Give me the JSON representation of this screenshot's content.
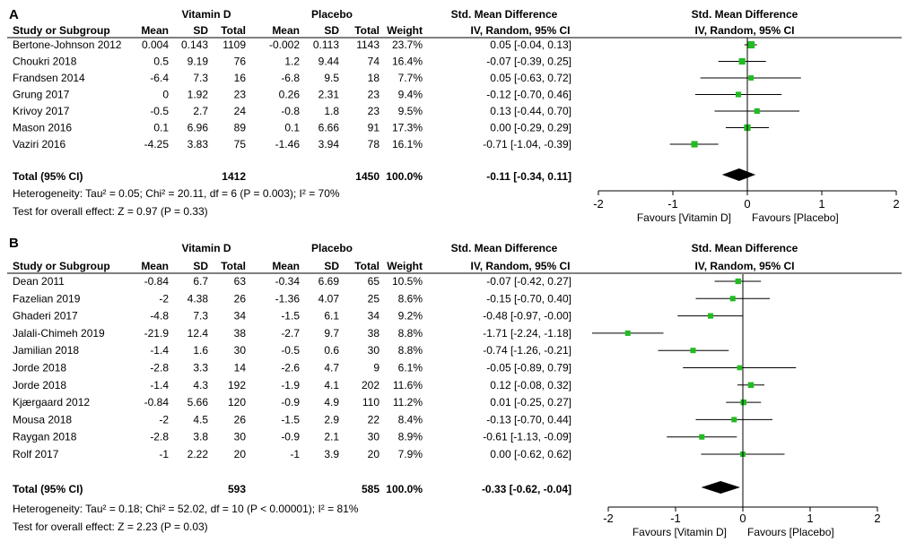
{
  "colors": {
    "marker": "#22bb22",
    "diamond": "#000000",
    "line": "#000000"
  },
  "chart_data": [
    {
      "type": "forest",
      "panel_label": "A",
      "headers": {
        "group1": "Vitamin D",
        "group2": "Placebo",
        "effect": "Std. Mean Difference",
        "study": "Study or Subgroup",
        "mean": "Mean",
        "sd": "SD",
        "total": "Total",
        "weight": "Weight",
        "method": "IV, Random, 95% CI"
      },
      "plot_title": "Std. Mean Difference",
      "plot_subtitle": "IV, Random, 95% CI",
      "studies": [
        {
          "name": "Bertone-Johnson 2012",
          "m1": "0.004",
          "sd1": "0.143",
          "n1": "1109",
          "m2": "-0.002",
          "sd2": "0.113",
          "n2": "1143",
          "weight": "23.7%",
          "ci_text": "0.05 [-0.04, 0.13]",
          "est": 0.05,
          "lo": -0.04,
          "hi": 0.13,
          "w": 23.7
        },
        {
          "name": "Choukri 2018",
          "m1": "0.5",
          "sd1": "9.19",
          "n1": "76",
          "m2": "1.2",
          "sd2": "9.44",
          "n2": "74",
          "weight": "16.4%",
          "ci_text": "-0.07 [-0.39, 0.25]",
          "est": -0.07,
          "lo": -0.39,
          "hi": 0.25,
          "w": 16.4
        },
        {
          "name": "Frandsen 2014",
          "m1": "-6.4",
          "sd1": "7.3",
          "n1": "16",
          "m2": "-6.8",
          "sd2": "9.5",
          "n2": "18",
          "weight": "7.7%",
          "ci_text": "0.05 [-0.63, 0.72]",
          "est": 0.05,
          "lo": -0.63,
          "hi": 0.72,
          "w": 7.7
        },
        {
          "name": "Grung 2017",
          "m1": "0",
          "sd1": "1.92",
          "n1": "23",
          "m2": "0.26",
          "sd2": "2.31",
          "n2": "23",
          "weight": "9.4%",
          "ci_text": "-0.12 [-0.70, 0.46]",
          "est": -0.12,
          "lo": -0.7,
          "hi": 0.46,
          "w": 9.4
        },
        {
          "name": "Krivoy 2017",
          "m1": "-0.5",
          "sd1": "2.7",
          "n1": "24",
          "m2": "-0.8",
          "sd2": "1.8",
          "n2": "23",
          "weight": "9.5%",
          "ci_text": "0.13 [-0.44, 0.70]",
          "est": 0.13,
          "lo": -0.44,
          "hi": 0.7,
          "w": 9.5
        },
        {
          "name": "Mason 2016",
          "m1": "0.1",
          "sd1": "6.96",
          "n1": "89",
          "m2": "0.1",
          "sd2": "6.66",
          "n2": "91",
          "weight": "17.3%",
          "ci_text": "0.00 [-0.29, 0.29]",
          "est": 0.0,
          "lo": -0.29,
          "hi": 0.29,
          "w": 17.3
        },
        {
          "name": "Vaziri 2016",
          "m1": "-4.25",
          "sd1": "3.83",
          "n1": "75",
          "m2": "-1.46",
          "sd2": "3.94",
          "n2": "78",
          "weight": "16.1%",
          "ci_text": "-0.71 [-1.04, -0.39]",
          "est": -0.71,
          "lo": -1.04,
          "hi": -0.39,
          "w": 16.1
        }
      ],
      "total": {
        "label": "Total (95% CI)",
        "n1": "1412",
        "n2": "1450",
        "weight": "100.0%",
        "ci_text": "-0.11 [-0.34, 0.11]",
        "est": -0.11,
        "lo": -0.34,
        "hi": 0.11
      },
      "heterogeneity": "Heterogeneity: Tau² = 0.05; Chi² = 20.11, df = 6 (P = 0.003); I² = 70%",
      "overall_effect": "Test for overall effect: Z = 0.97 (P = 0.33)",
      "axis": {
        "min": -2,
        "max": 2,
        "ticks": [
          -2,
          -1,
          0,
          1,
          2
        ],
        "tick_labels": [
          "-2",
          "-1",
          "0",
          "1",
          "2"
        ]
      },
      "favours_left": "Favours [Vitamin D]",
      "favours_right": "Favours [Placebo]"
    },
    {
      "type": "forest",
      "panel_label": "B",
      "headers": {
        "group1": "Vitamin D",
        "group2": "Placebo",
        "effect": "Std. Mean Difference",
        "study": "Study or Subgroup",
        "mean": "Mean",
        "sd": "SD",
        "total": "Total",
        "weight": "Weight",
        "method": "IV, Random, 95% CI"
      },
      "plot_title": "Std. Mean Difference",
      "plot_subtitle": "IV, Random, 95% CI",
      "studies": [
        {
          "name": "Dean 2011",
          "m1": "-0.84",
          "sd1": "6.7",
          "n1": "63",
          "m2": "-0.34",
          "sd2": "6.69",
          "n2": "65",
          "weight": "10.5%",
          "ci_text": "-0.07 [-0.42, 0.27]",
          "est": -0.07,
          "lo": -0.42,
          "hi": 0.27,
          "w": 10.5
        },
        {
          "name": "Fazelian 2019",
          "m1": "-2",
          "sd1": "4.38",
          "n1": "26",
          "m2": "-1.36",
          "sd2": "4.07",
          "n2": "25",
          "weight": "8.6%",
          "ci_text": "-0.15 [-0.70, 0.40]",
          "est": -0.15,
          "lo": -0.7,
          "hi": 0.4,
          "w": 8.6
        },
        {
          "name": "Ghaderi 2017",
          "m1": "-4.8",
          "sd1": "7.3",
          "n1": "34",
          "m2": "-1.5",
          "sd2": "6.1",
          "n2": "34",
          "weight": "9.2%",
          "ci_text": "-0.48 [-0.97, -0.00]",
          "est": -0.48,
          "lo": -0.97,
          "hi": -0.0,
          "w": 9.2
        },
        {
          "name": "Jalali-Chimeh 2019",
          "m1": "-21.9",
          "sd1": "12.4",
          "n1": "38",
          "m2": "-2.7",
          "sd2": "9.7",
          "n2": "38",
          "weight": "8.8%",
          "ci_text": "-1.71 [-2.24, -1.18]",
          "est": -1.71,
          "lo": -2.24,
          "hi": -1.18,
          "w": 8.8
        },
        {
          "name": "Jamilian 2018",
          "m1": "-1.4",
          "sd1": "1.6",
          "n1": "30",
          "m2": "-0.5",
          "sd2": "0.6",
          "n2": "30",
          "weight": "8.8%",
          "ci_text": "-0.74 [-1.26, -0.21]",
          "est": -0.74,
          "lo": -1.26,
          "hi": -0.21,
          "w": 8.8
        },
        {
          "name": "Jorde 2018",
          "m1": "-2.8",
          "sd1": "3.3",
          "n1": "14",
          "m2": "-2.6",
          "sd2": "4.7",
          "n2": "9",
          "weight": "6.1%",
          "ci_text": "-0.05 [-0.89, 0.79]",
          "est": -0.05,
          "lo": -0.89,
          "hi": 0.79,
          "w": 6.1
        },
        {
          "name": "Jorde 2018",
          "m1": "-1.4",
          "sd1": "4.3",
          "n1": "192",
          "m2": "-1.9",
          "sd2": "4.1",
          "n2": "202",
          "weight": "11.6%",
          "ci_text": "0.12 [-0.08, 0.32]",
          "est": 0.12,
          "lo": -0.08,
          "hi": 0.32,
          "w": 11.6
        },
        {
          "name": "Kjærgaard 2012",
          "m1": "-0.84",
          "sd1": "5.66",
          "n1": "120",
          "m2": "-0.9",
          "sd2": "4.9",
          "n2": "110",
          "weight": "11.2%",
          "ci_text": "0.01 [-0.25, 0.27]",
          "est": 0.01,
          "lo": -0.25,
          "hi": 0.27,
          "w": 11.2
        },
        {
          "name": "Mousa 2018",
          "m1": "-2",
          "sd1": "4.5",
          "n1": "26",
          "m2": "-1.5",
          "sd2": "2.9",
          "n2": "22",
          "weight": "8.4%",
          "ci_text": "-0.13 [-0.70, 0.44]",
          "est": -0.13,
          "lo": -0.7,
          "hi": 0.44,
          "w": 8.4
        },
        {
          "name": "Raygan 2018",
          "m1": "-2.8",
          "sd1": "3.8",
          "n1": "30",
          "m2": "-0.9",
          "sd2": "2.1",
          "n2": "30",
          "weight": "8.9%",
          "ci_text": "-0.61 [-1.13, -0.09]",
          "est": -0.61,
          "lo": -1.13,
          "hi": -0.09,
          "w": 8.9
        },
        {
          "name": "Rolf 2017",
          "m1": "-1",
          "sd1": "2.22",
          "n1": "20",
          "m2": "-1",
          "sd2": "3.9",
          "n2": "20",
          "weight": "7.9%",
          "ci_text": "0.00 [-0.62, 0.62]",
          "est": 0.0,
          "lo": -0.62,
          "hi": 0.62,
          "w": 7.9
        }
      ],
      "total": {
        "label": "Total (95% CI)",
        "n1": "593",
        "n2": "585",
        "weight": "100.0%",
        "ci_text": "-0.33 [-0.62, -0.04]",
        "est": -0.33,
        "lo": -0.62,
        "hi": -0.04
      },
      "heterogeneity": "Heterogeneity: Tau² = 0.18; Chi² = 52.02, df = 10 (P < 0.00001); I² = 81%",
      "overall_effect": "Test for overall effect: Z = 2.23 (P = 0.03)",
      "axis": {
        "min": -2,
        "max": 2,
        "ticks": [
          -2,
          -1,
          0,
          1,
          2
        ],
        "tick_labels": [
          "-2",
          "-1",
          "0",
          "1",
          "2"
        ]
      },
      "favours_left": "Favours [Vitamin D]",
      "favours_right": "Favours [Placebo]"
    }
  ]
}
